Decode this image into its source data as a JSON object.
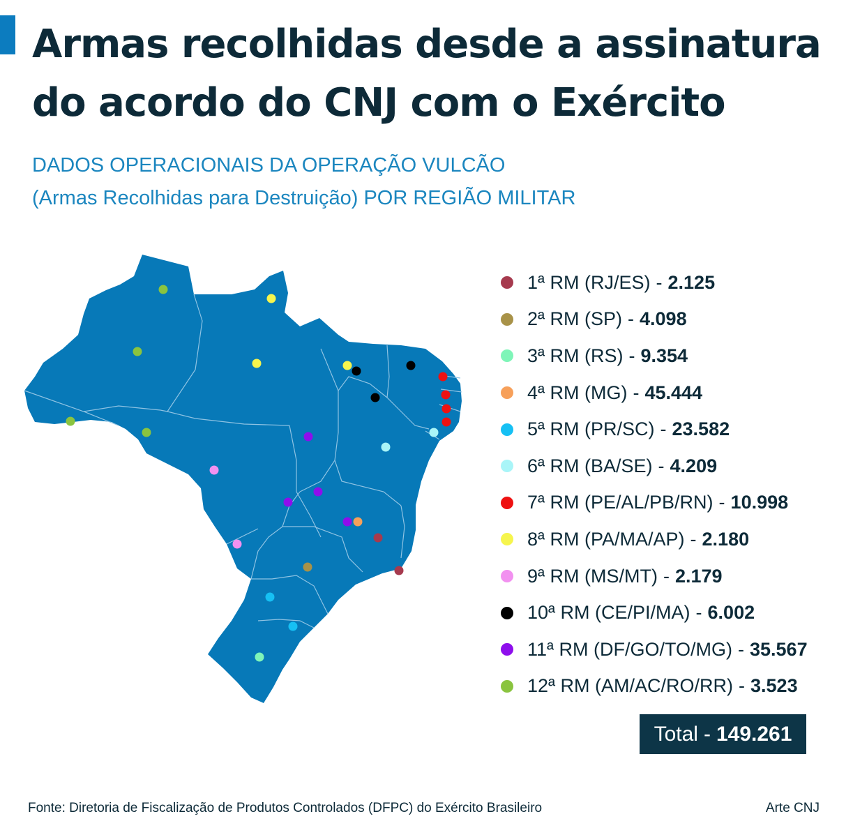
{
  "header": {
    "title": "Armas recolhidas desde a assinatura do acordo do CNJ com o Exército",
    "subtitle_line1": "DADOS OPERACIONAIS DA OPERAÇÃO VULCÃO",
    "subtitle_line2": "(Armas Recolhidas para Destruição) POR REGIÃO MILITAR"
  },
  "colors": {
    "accent": "#0c7cbf",
    "map_fill": "#0779b8",
    "state_border": "#8fc3e3",
    "title_text": "#0d2a38",
    "subtitle_text": "#1b86bf",
    "total_box": "#0d3547"
  },
  "legend": [
    {
      "label": "1ª RM (RJ/ES)",
      "value": "2.125",
      "color": "#a63a4e"
    },
    {
      "label": "2ª RM (SP)",
      "value": "4.098",
      "color": "#a89248"
    },
    {
      "label": "3ª RM (RS)",
      "value": "9.354",
      "color": "#7ff5b8"
    },
    {
      "label": "4ª RM (MG)",
      "value": "45.444",
      "color": "#f7a05a"
    },
    {
      "label": "5ª RM (PR/SC)",
      "value": "23.582",
      "color": "#16c0f4"
    },
    {
      "label": "6ª RM (BA/SE)",
      "value": "4.209",
      "color": "#a9f5f8"
    },
    {
      "label": "7ª RM (PE/AL/PB/RN)",
      "value": "10.998",
      "color": "#ee1111"
    },
    {
      "label": "8ª RM (PA/MA/AP)",
      "value": "2.180",
      "color": "#f6f54d"
    },
    {
      "label": "9ª RM (MS/MT)",
      "value": "2.179",
      "color": "#f291f0"
    },
    {
      "label": "10ª RM (CE/PI/MA)",
      "value": "6.002",
      "color": "#000000"
    },
    {
      "label": "11ª RM (DF/GO/TO/MG)",
      "value": "35.567",
      "color": "#8e0eec"
    },
    {
      "label": "12ª RM (AM/AC/RO/RR)",
      "value": "3.523",
      "color": "#8ac43f"
    }
  ],
  "total": {
    "label": "Total",
    "value": "149.261"
  },
  "footer": {
    "source": "Fonte: Diretoria de Fiscalização de Produtos Controlados (DFPC) do Exército Brasileiro",
    "credit": "Arte CNJ"
  }
}
